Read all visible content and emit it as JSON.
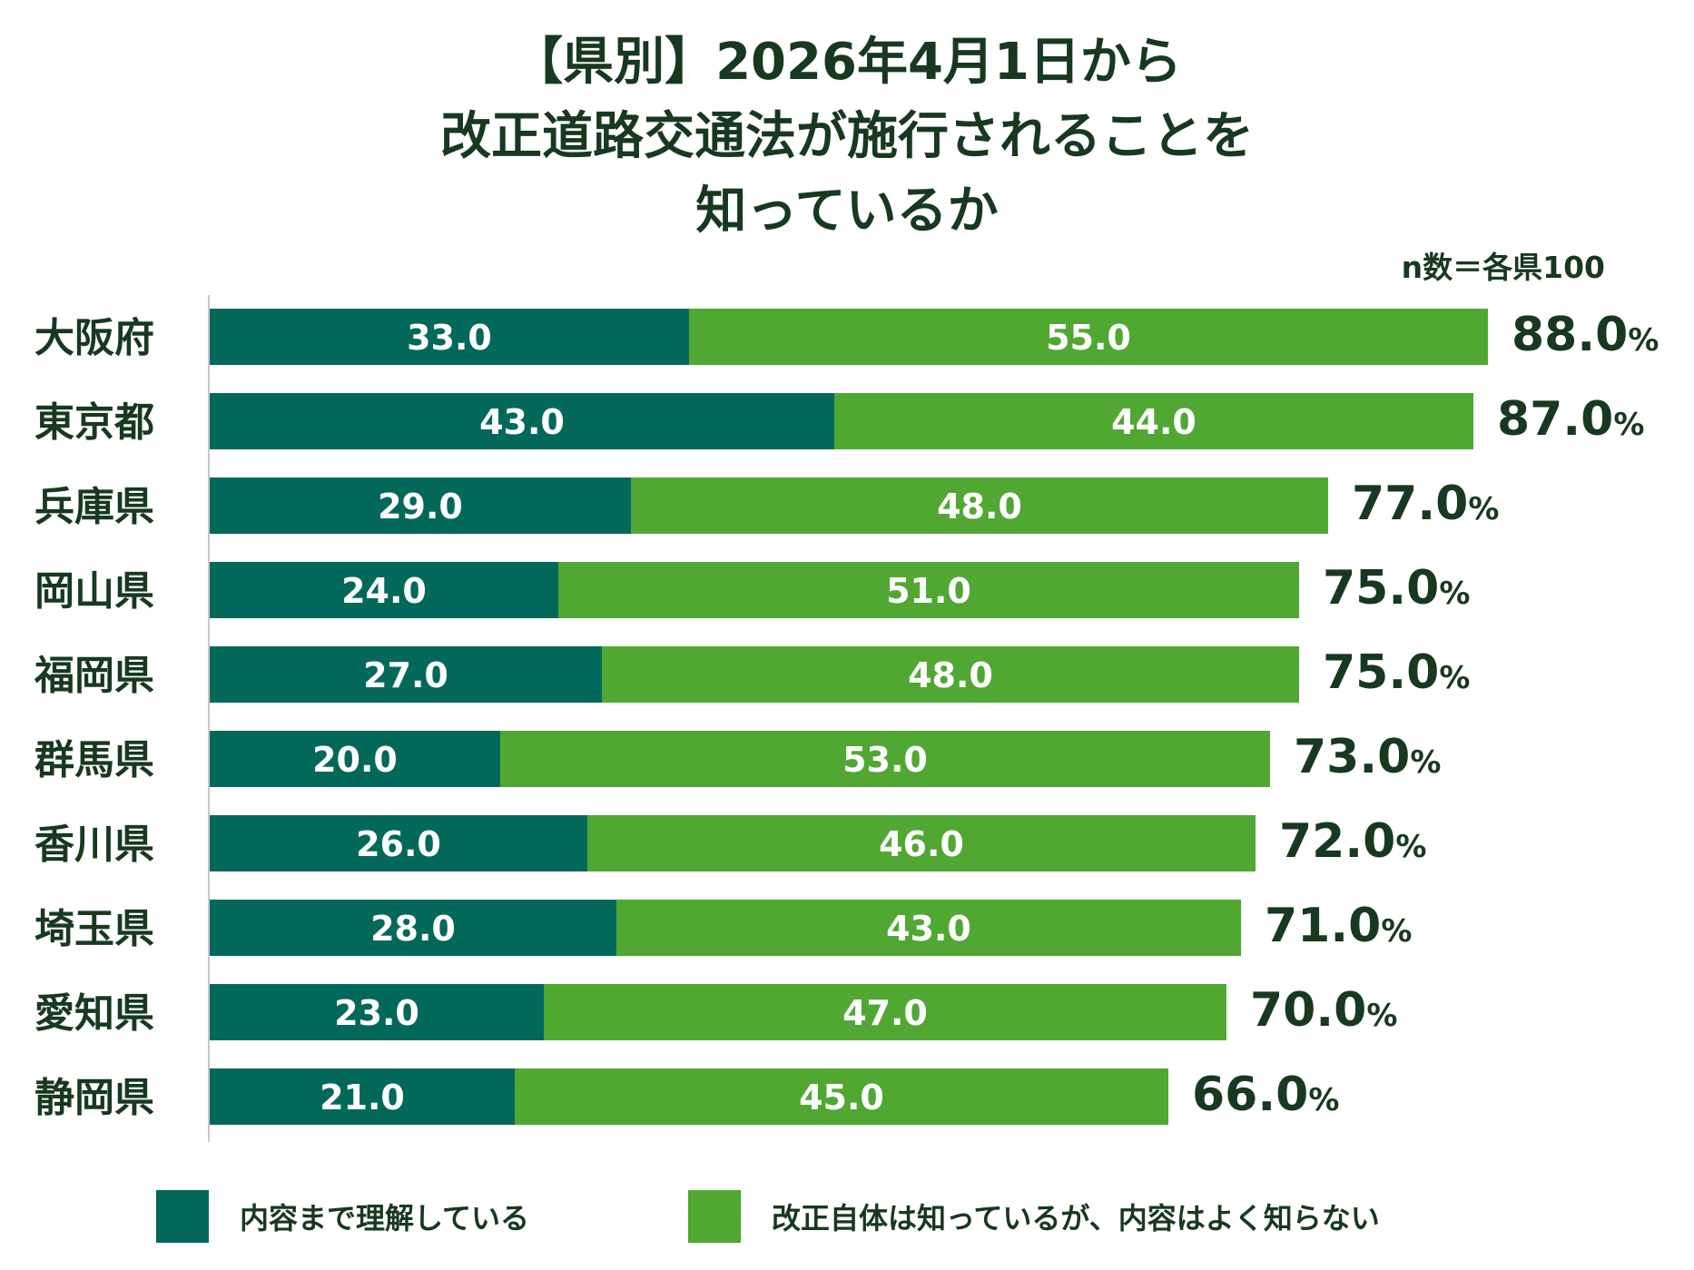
{
  "title_lines": [
    "【県別】2026年4月1日から",
    "改正道路交通法が施行されることを",
    "知っているか"
  ],
  "note": "n数＝各県100",
  "colors": {
    "dark": "#02695a",
    "light": "#50a833",
    "text": "#17391f",
    "axis": "#c8c8c8"
  },
  "chart_data": {
    "type": "bar",
    "orientation": "horizontal",
    "stacked": true,
    "title": "【県別】2026年4月1日から改正道路交通法が施行されることを知っているか",
    "categories": [
      "大阪府",
      "東京都",
      "兵庫県",
      "岡山県",
      "福岡県",
      "群馬県",
      "香川県",
      "埼玉県",
      "愛知県",
      "静岡県"
    ],
    "series": [
      {
        "name": "内容まで理解している",
        "color": "#02695a",
        "values": [
          33.0,
          43.0,
          29.0,
          24.0,
          27.0,
          20.0,
          26.0,
          28.0,
          23.0,
          21.0
        ]
      },
      {
        "name": "改正自体は知っているが、内容はよく知らない",
        "color": "#50a833",
        "values": [
          55.0,
          44.0,
          48.0,
          51.0,
          48.0,
          53.0,
          46.0,
          43.0,
          47.0,
          45.0
        ]
      }
    ],
    "totals": [
      88.0,
      87.0,
      77.0,
      75.0,
      75.0,
      73.0,
      72.0,
      71.0,
      70.0,
      66.0
    ],
    "total_unit": "%",
    "xlim": [
      0,
      100
    ],
    "legend": "bottom",
    "grid": false
  }
}
